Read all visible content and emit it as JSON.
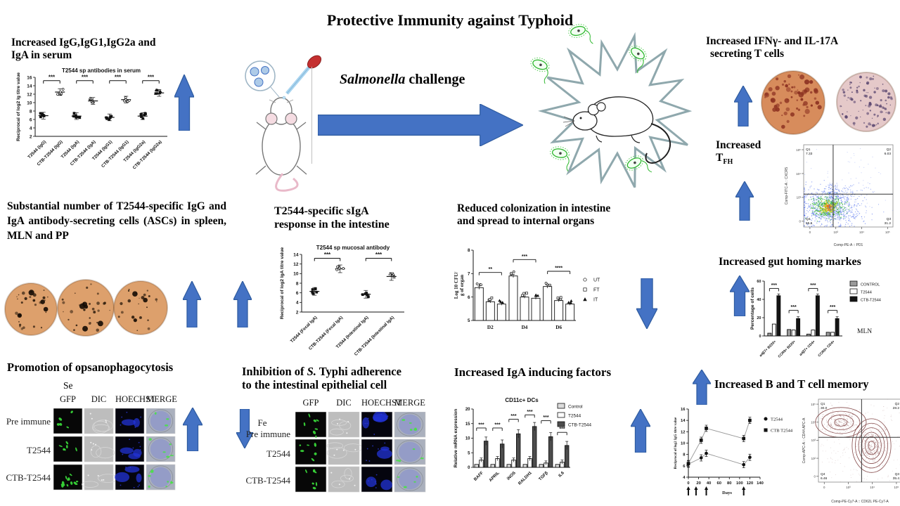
{
  "title": "Protective Immunity against Typhoid",
  "colors": {
    "arrow": "#4472C4",
    "arrow_stroke": "#2E5B9F",
    "elispot_orange": "#DDA06C",
    "elispot_spot": "#2e1d0e",
    "ifn_left_well": "#D78C5C",
    "ifn_left_spot": "#8B3020",
    "ifn_right_well": "#E5C9C9",
    "ifn_right_spot": "#5E4A72",
    "gfp_green": "#38D438",
    "hoechst_blue": "#2233D6"
  },
  "center": {
    "challenge_italic": "Salmonella",
    "challenge_rest": "  challenge"
  },
  "panels": {
    "serum": {
      "heading_l1": "Increased IgG,IgG1,IgG2a and",
      "heading_l2": "IgA in serum"
    },
    "ifn": {
      "heading_l1": "Increased IFNγ- and IL-17A",
      "heading_l2": "secreting T cells"
    },
    "tfh": {
      "word": "Increased",
      "t": "T",
      "sub": "FH"
    },
    "asc": {
      "text": "Substantial number of T2544-specific IgG and IgA antibody-secreting cells (ASCs) in spleen, MLN and PP"
    },
    "siga": {
      "heading_l1": "T2544-specific sIgA",
      "heading_l2": "response in the  intestine"
    },
    "colonization": {
      "heading_l1": "Reduced colonization in intestine",
      "heading_l2": "and spread to internal organs"
    },
    "gut": {
      "heading": "Increased gut homing markes"
    },
    "opsono": {
      "heading": "Promotion of opsanophagocytosis",
      "group_label": "Se",
      "col_headers": [
        "GFP",
        "DIC",
        "HOECHST",
        "MERGE"
      ],
      "row_labels": [
        "Pre immune",
        "T2544",
        "CTB-T2544"
      ]
    },
    "inhibition": {
      "heading_pre": "Inhibition of ",
      "heading_italic": "S.",
      "heading_post": " Typhi adherence",
      "heading_l2": "to the intestinal epithelial cell",
      "group_label": "Fe",
      "col_headers": [
        "GFP",
        "DIC",
        "HOECHST",
        "MERGE"
      ],
      "row_labels": [
        "Pre immune",
        "T2544",
        "CTB-T2544"
      ]
    },
    "iga": {
      "heading": "Increased IgA inducing factors"
    },
    "memory": {
      "heading": "Increased  B and T cell memory"
    }
  },
  "chart_data": [
    {
      "id": "serum_scatter",
      "type": "scatter",
      "title": "T2544 sp antibodies in serum",
      "ylabel": "Reciprocal of log2 Ig titre value",
      "ylim": [
        2,
        16
      ],
      "ytick_step": 2,
      "categories": [
        "T2544 (IgG)",
        "CTB-T2544 (IgG)",
        "T2544 (IgA)",
        "CTB-T2544 (IgA)",
        "T2544 (IgG1)",
        "CTB-T2544 (IgG1)",
        "T2544 (IgG2a)",
        "CTB-T2544 (IgG2a)"
      ],
      "means": [
        6.9,
        12.5,
        6.8,
        10.4,
        6.5,
        10.7,
        6.8,
        12.3
      ],
      "error": 0.8,
      "significance": [
        {
          "between": [
            0,
            1
          ],
          "label": "***",
          "y": 15.2
        },
        {
          "between": [
            2,
            3
          ],
          "label": "***",
          "y": 15.2
        },
        {
          "between": [
            4,
            5
          ],
          "label": "***",
          "y": 15.2
        },
        {
          "between": [
            6,
            7
          ],
          "label": "***",
          "y": 15.2
        }
      ]
    },
    {
      "id": "mucosal_scatter",
      "type": "scatter",
      "title": "T2544 sp mucosal antibody",
      "ylabel": "Reciprocal of log2 IgA titre value",
      "ylim": [
        2,
        14
      ],
      "ytick_step": 2,
      "categories": [
        "T2544 (Fecal IgA)",
        "CTB-T2544 (Fecal IgA)",
        "T2544 (Intestinal IgA)",
        "CTB-T2544 (Intestinal IgA)"
      ],
      "means": [
        6.3,
        11.0,
        5.7,
        9.4
      ],
      "error": 0.8,
      "significance": [
        {
          "between": [
            0,
            1
          ],
          "label": "***",
          "y": 13.2
        },
        {
          "between": [
            2,
            3
          ],
          "label": "***",
          "y": 13.2
        }
      ]
    },
    {
      "id": "cfu_bars",
      "type": "bar",
      "ylabel_l1": "Log 10 CFU/",
      "ylabel_l2": "g of organ",
      "ylim": [
        5,
        8
      ],
      "yticks": [
        5,
        6,
        7,
        8
      ],
      "categories": [
        "D2",
        "D4",
        "D6"
      ],
      "series": [
        {
          "name": "UT",
          "values": [
            6.4,
            6.9,
            6.45
          ]
        },
        {
          "name": "FT",
          "values": [
            5.8,
            6.0,
            5.85
          ]
        },
        {
          "name": "IT",
          "values": [
            5.7,
            5.95,
            5.7
          ]
        }
      ],
      "significance": [
        {
          "label": "**",
          "y": 7.05
        },
        {
          "label": "***",
          "y": 7.6
        },
        {
          "label": "****",
          "y": 7.1
        }
      ]
    },
    {
      "id": "gut_homing_bars",
      "type": "bar",
      "ylabel": "Percentage of cells",
      "ylim": [
        0,
        60
      ],
      "yticks": [
        0,
        20,
        40,
        60
      ],
      "categories": [
        "α4β7+ B220+",
        "CCR9+ B220+",
        "α4β7+ CD4+",
        "CCR9+ CD4+"
      ],
      "series": [
        {
          "name": "CONTROL",
          "values": [
            3,
            7,
            2,
            4
          ]
        },
        {
          "name": "T2544",
          "values": [
            13,
            6.5,
            6.5,
            4
          ]
        },
        {
          "name": "CTB-T2544",
          "values": [
            44,
            19,
            44,
            19
          ]
        }
      ],
      "significance": [
        {
          "label": "***",
          "y": 52
        },
        {
          "label": "***",
          "y": 28
        },
        {
          "label": "***",
          "y": 52
        },
        {
          "label": "***",
          "y": 28
        }
      ],
      "note": "MLN"
    },
    {
      "id": "cd11c_bars",
      "type": "bar",
      "title": "CD11c+ DCs",
      "ylabel": "Relative mRNA expression",
      "ylim": [
        0,
        20
      ],
      "yticks": [
        0,
        5,
        10,
        15,
        20
      ],
      "categories": [
        "BAFF",
        "APRIL",
        "iNOS",
        "RALDH1",
        "TGFβ",
        "IL6"
      ],
      "series": [
        {
          "name": "Control",
          "values": [
            1,
            1,
            1,
            1,
            1,
            1
          ]
        },
        {
          "name": "T2544",
          "values": [
            2.5,
            3,
            2.5,
            3,
            1.5,
            1.8
          ]
        },
        {
          "name": "CTB-T2544",
          "values": [
            9,
            8,
            11.5,
            14,
            10.5,
            7.5
          ]
        }
      ],
      "significance": [
        {
          "label": "***",
          "y": 13.5
        },
        {
          "label": "***",
          "y": 13.5
        },
        {
          "label": "***",
          "y": 16.5
        },
        {
          "label": "***",
          "y": 18
        },
        {
          "label": "***",
          "y": 16
        },
        {
          "label": "***",
          "y": 12
        }
      ]
    },
    {
      "id": "memory_titre_line",
      "type": "line",
      "ylabel": "Reciprocal of log2 IgG titre value",
      "xlabel": "Days",
      "xlim": [
        0,
        140
      ],
      "xtick_step": 20,
      "ylim": [
        4,
        16
      ],
      "ytick_step": 2,
      "x": [
        0,
        25,
        35,
        108,
        120
      ],
      "series": [
        {
          "name": "T2544",
          "values": [
            6.3,
            7.4,
            8.2,
            6.2,
            7.5
          ]
        },
        {
          "name": "CTB T2544",
          "values": [
            6.4,
            10.5,
            12.6,
            10.8,
            14.0
          ]
        }
      ],
      "error": 0.55,
      "immunization_arrow_days": [
        0,
        15,
        35,
        108
      ]
    },
    {
      "id": "tfh_flow",
      "type": "scatter",
      "style": "flow-density",
      "xlabel": "Comp-PE-A :: PD1",
      "ylabel": "Comp-FITC-A :: CXCR5",
      "x_ticks": [
        "0",
        "10³",
        "10⁴",
        "10⁵"
      ],
      "y_ticks": [
        "0",
        "10³",
        "10⁴",
        "10⁵"
      ],
      "quadrants": [
        {
          "name": "Q1",
          "value": "7.33"
        },
        {
          "name": "Q2",
          "value": "6.03"
        },
        {
          "name": "Q3",
          "value": "31.2"
        },
        {
          "name": "Q4",
          "value": "55.5"
        }
      ]
    },
    {
      "id": "memory_flow",
      "type": "scatter",
      "style": "flow-contour",
      "xlabel": "Comp-PE-Cy7-A :: CD62L PE-Cy7-A",
      "ylabel": "Comp-APC-A :: CD44 APC-A",
      "x_ticks": [
        "0",
        "10³",
        "10⁴",
        "10⁵"
      ],
      "y_ticks": [
        "0",
        "10²",
        "10³",
        "10⁴",
        "10⁵"
      ],
      "quadrants": [
        {
          "name": "Q1",
          "value": "30.0"
        },
        {
          "name": "Q2",
          "value": "28.2"
        },
        {
          "name": "Q3",
          "value": "35.4"
        },
        {
          "name": "Q4",
          "value": "6.46"
        }
      ]
    }
  ]
}
